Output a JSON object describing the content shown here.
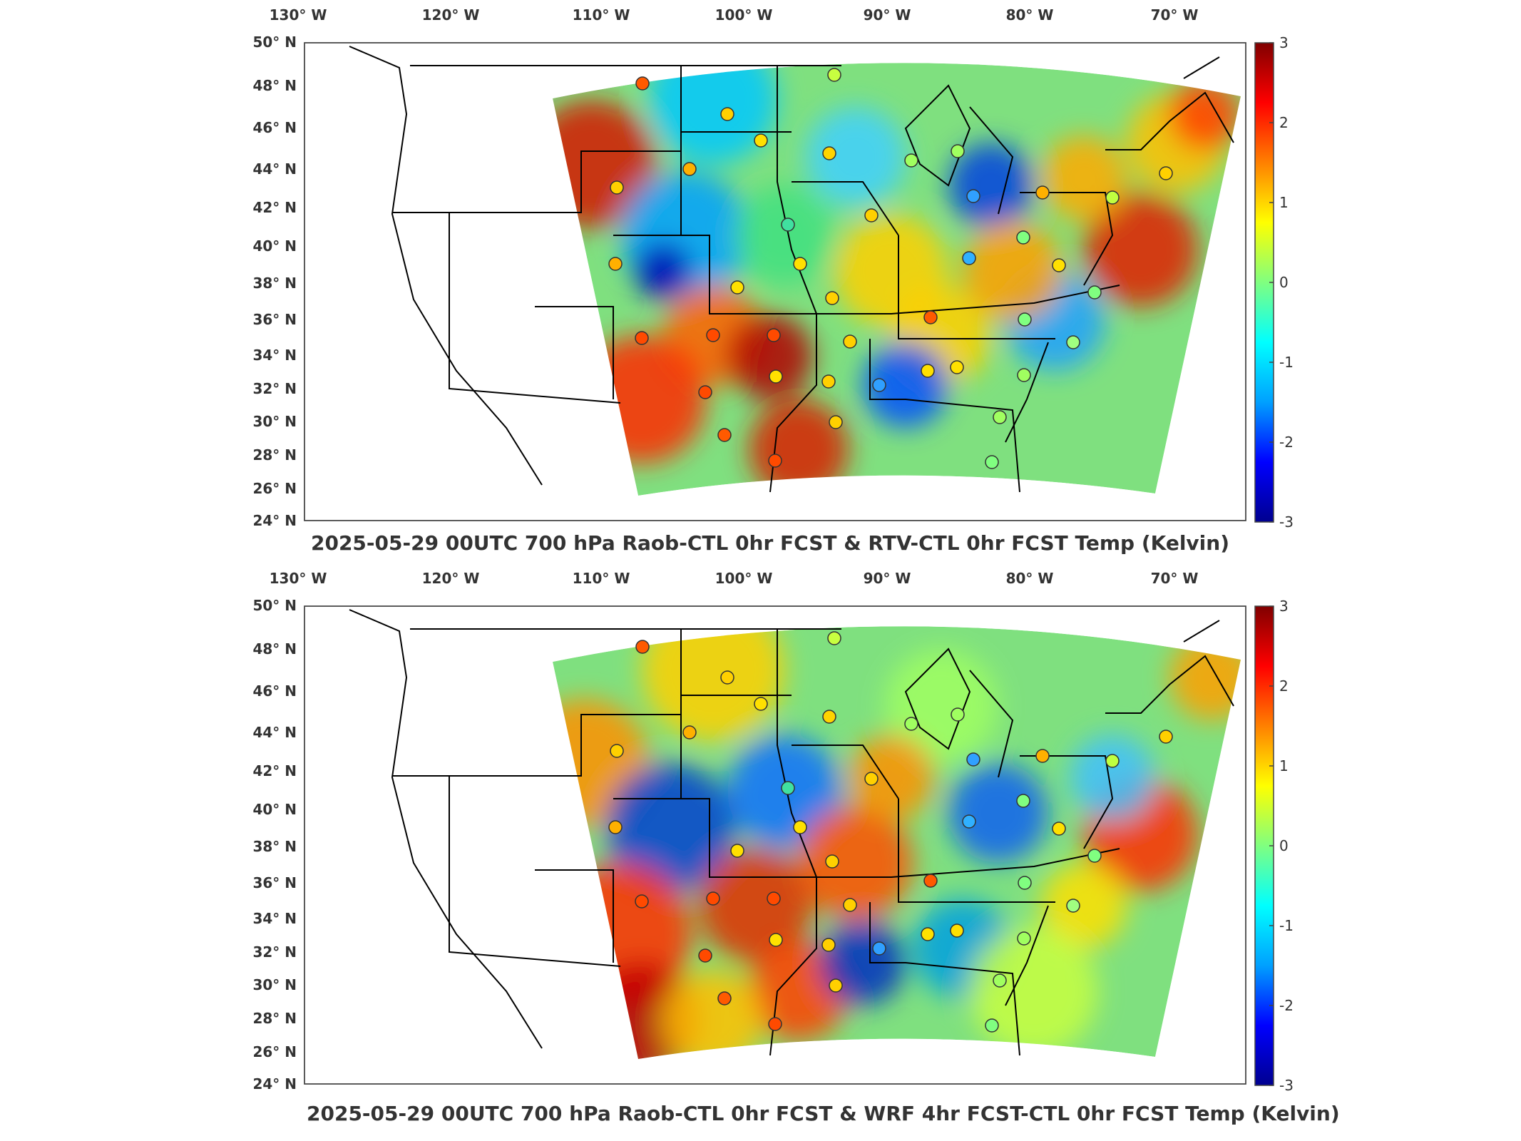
{
  "panels": [
    {
      "id": "top",
      "title": "2025-05-29 00UTC 700 hPa Raob-CTL 0hr FCST & RTV-CTL 0hr FCST Temp (Kelvin)",
      "lon_labels": [
        "130° W",
        "120° W",
        "110° W",
        "100° W",
        "90° W",
        "80° W",
        "70° W"
      ],
      "lat_labels": [
        "50° N",
        "48° N",
        "46° N",
        "44° N",
        "42° N",
        "40° N",
        "38° N",
        "36° N",
        "34° N",
        "32° N",
        "30° N",
        "28° N",
        "26° N",
        "24° N"
      ],
      "colorbar_ticks": [
        "3",
        "2",
        "1",
        "0",
        "-1",
        "-2",
        "-3"
      ]
    },
    {
      "id": "bottom",
      "title": "2025-05-29 00UTC 700 hPa Raob-CTL 0hr FCST & WRF 4hr FCST-CTL 0hr FCST Temp (Kelvin)",
      "lon_labels": [
        "130° W",
        "120° W",
        "110° W",
        "100° W",
        "90° W",
        "80° W",
        "70° W"
      ],
      "lat_labels": [
        "50° N",
        "48° N",
        "46° N",
        "44° N",
        "42° N",
        "40° N",
        "38° N",
        "36° N",
        "34° N",
        "32° N",
        "30° N",
        "28° N",
        "26° N",
        "24° N"
      ],
      "colorbar_ticks": [
        "3",
        "2",
        "1",
        "0",
        "-1",
        "-2",
        "-3"
      ]
    }
  ],
  "colormap": [
    "#00008f",
    "#0000ff",
    "#00a0ff",
    "#00ffff",
    "#80ff80",
    "#ffff00",
    "#ff8000",
    "#ff0000",
    "#800000"
  ],
  "colorbar_range": [
    -3,
    3
  ],
  "map_region": {
    "lon_range": [
      -130,
      -65
    ],
    "lat_range": [
      24,
      50
    ]
  }
}
